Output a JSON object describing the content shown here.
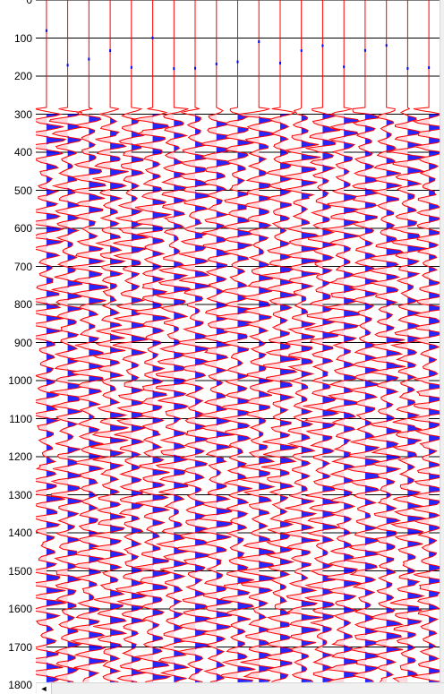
{
  "chart_data": {
    "type": "seismic-wiggle",
    "yaxis": {
      "ticks": [
        "0",
        "100",
        "200",
        "300",
        "400",
        "500",
        "600",
        "700",
        "800",
        "900",
        "1000",
        "1100",
        "1200",
        "1300",
        "1400",
        "1500",
        "1600",
        "1700",
        "1800"
      ],
      "ylim": [
        0,
        1800
      ]
    },
    "traces": 19,
    "first_arrival": 300,
    "peak_fill_color": "#0000ff",
    "trough_fill_color": "#ffd8dc",
    "wiggle_color": "#ff0000",
    "gridline_color": "#000000"
  },
  "scrollbar": {
    "left_icon": "arrow-left-icon",
    "left_glyph": "◄"
  }
}
